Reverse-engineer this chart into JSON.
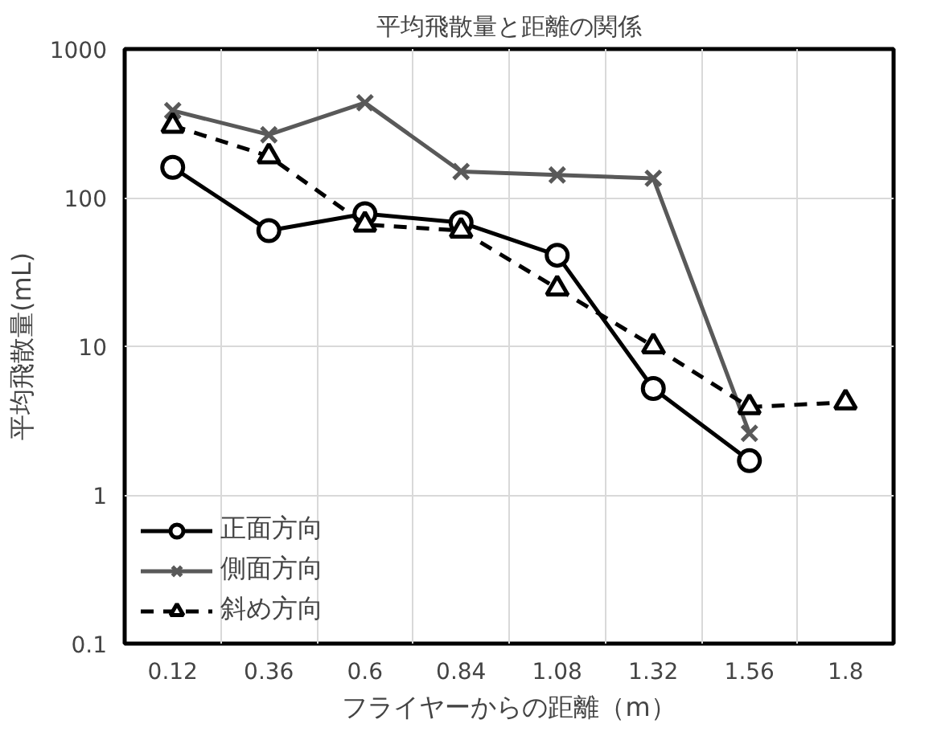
{
  "chart_data": {
    "type": "line",
    "title": "平均飛散量と距離の関係",
    "xlabel": "フライヤーからの距離（m）",
    "ylabel": "平均飛散量(mL)",
    "categories": [
      "0.12",
      "0.36",
      "0.6",
      "0.84",
      "1.08",
      "1.32",
      "1.56",
      "1.8"
    ],
    "series": [
      {
        "name": "正面方向",
        "color": "#000000",
        "marker": "circle",
        "line_style": "solid",
        "values": [
          160,
          60,
          78,
          68,
          41,
          5.2,
          1.7,
          null
        ]
      },
      {
        "name": "側面方向",
        "color": "#595959",
        "marker": "cross",
        "line_style": "solid",
        "values": [
          385,
          265,
          435,
          150,
          142,
          135,
          2.6,
          null
        ]
      },
      {
        "name": "斜め方向",
        "color": "#000000",
        "marker": "triangle",
        "line_style": "dashed",
        "values": [
          305,
          190,
          66,
          60,
          24.5,
          10,
          3.9,
          4.2
        ]
      }
    ],
    "log": true,
    "ylim": [
      0.1,
      1000
    ],
    "yticks": [
      0.1,
      1,
      10,
      100,
      1000
    ],
    "grid": true,
    "legend": "bottom left"
  }
}
